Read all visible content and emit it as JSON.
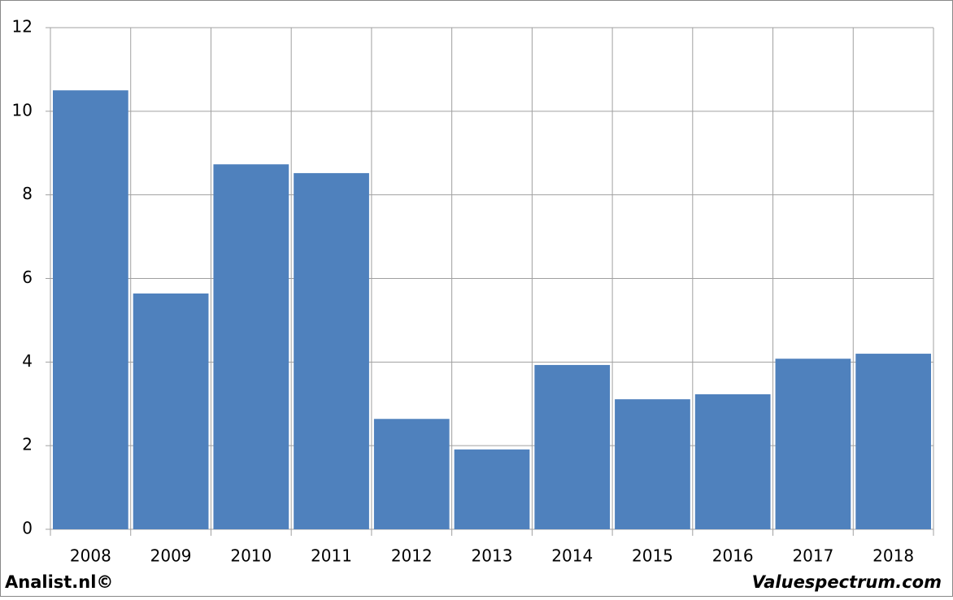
{
  "chart_data": {
    "type": "bar",
    "categories": [
      "2008",
      "2009",
      "2010",
      "2011",
      "2012",
      "2013",
      "2014",
      "2015",
      "2016",
      "2017",
      "2018"
    ],
    "values": [
      10.5,
      5.64,
      8.73,
      8.52,
      2.64,
      1.91,
      3.93,
      3.11,
      3.23,
      4.08,
      4.2
    ],
    "color": "#4f81bd",
    "ylim": [
      0,
      12
    ],
    "yticks": [
      0,
      2,
      4,
      6,
      8,
      10,
      12
    ],
    "grid": true,
    "watermarks": [
      "Analist.nl©",
      "Valuespectrum.com"
    ]
  }
}
